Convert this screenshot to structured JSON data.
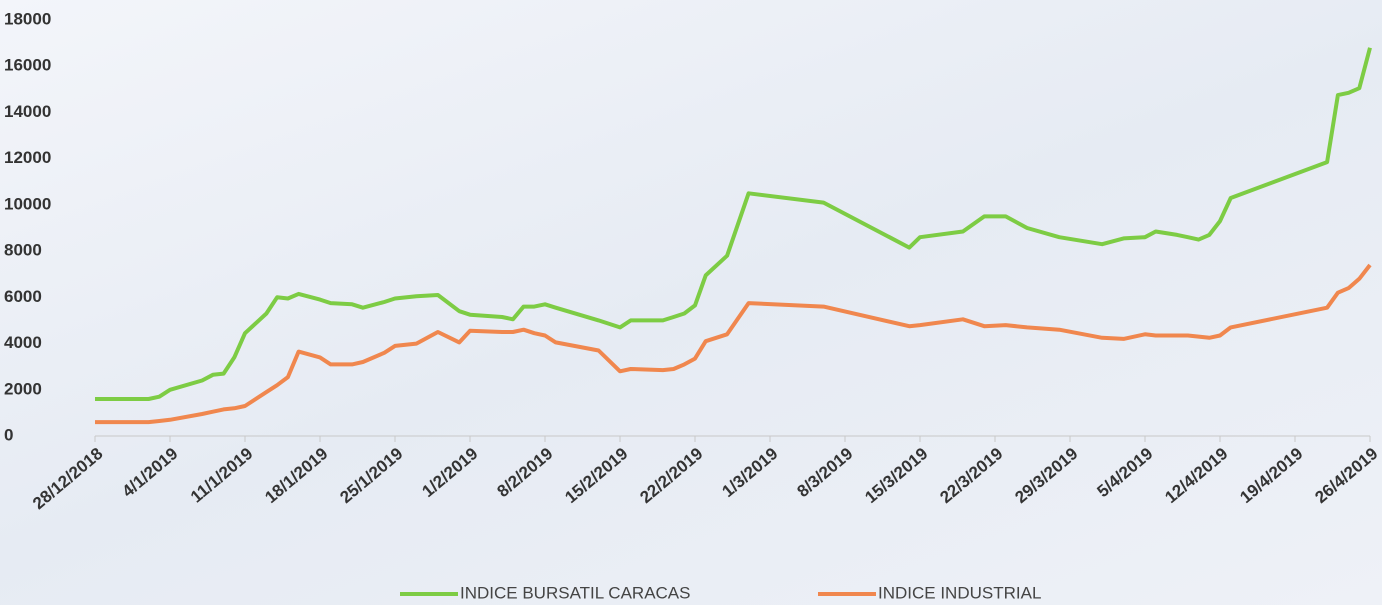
{
  "chart_data": {
    "type": "line",
    "x": [
      "28/12/2018",
      "2/1/2019",
      "3/1/2019",
      "4/1/2019",
      "7/1/2019",
      "8/1/2019",
      "9/1/2019",
      "10/1/2019",
      "11/1/2019",
      "13/1/2019",
      "14/1/2019",
      "15/1/2019",
      "16/1/2019",
      "18/1/2019",
      "19/1/2019",
      "21/1/2019",
      "22/1/2019",
      "24/1/2019",
      "25/1/2019",
      "27/1/2019",
      "29/1/2019",
      "31/1/2019",
      "1/2/2019",
      "4/2/2019",
      "5/2/2019",
      "6/2/2019",
      "7/2/2019",
      "8/2/2019",
      "9/2/2019",
      "13/2/2019",
      "15/2/2019",
      "16/2/2019",
      "19/2/2019",
      "20/2/2019",
      "21/2/2019",
      "22/2/2019",
      "23/2/2019",
      "25/2/2019",
      "27/2/2019",
      "6/3/2019",
      "14/3/2019",
      "15/3/2019",
      "19/3/2019",
      "21/3/2019",
      "23/3/2019",
      "25/3/2019",
      "28/3/2019",
      "1/4/2019",
      "3/4/2019",
      "5/4/2019",
      "6/4/2019",
      "8/4/2019",
      "9/4/2019",
      "10/4/2019",
      "11/4/2019",
      "12/4/2019",
      "13/4/2019",
      "22/4/2019",
      "23/4/2019",
      "24/4/2019",
      "25/4/2019",
      "26/4/2019"
    ],
    "series": [
      {
        "name": "INDICE BURSATIL CARACAS",
        "color": "#7dcc44",
        "values": [
          1600,
          1600,
          1700,
          2000,
          2400,
          2650,
          2700,
          3400,
          4450,
          5300,
          6000,
          5950,
          6150,
          5900,
          5750,
          5700,
          5550,
          5800,
          5950,
          6050,
          6100,
          5400,
          5250,
          5150,
          5050,
          5600,
          5600,
          5700,
          5550,
          5000,
          4700,
          5000,
          5000,
          5150,
          5300,
          5650,
          6950,
          7800,
          10500,
          10100,
          8150,
          8600,
          8850,
          9500,
          9500,
          9000,
          8600,
          8300,
          8550,
          8600,
          8850,
          8700,
          8600,
          8500,
          8700,
          9300,
          10300,
          11850,
          14750,
          14850,
          15050,
          16800
        ]
      },
      {
        "name": "INDICE INDUSTRIAL",
        "color": "#f0874e",
        "values": [
          600,
          600,
          650,
          700,
          950,
          1050,
          1150,
          1200,
          1300,
          1900,
          2200,
          2550,
          3650,
          3400,
          3100,
          3100,
          3200,
          3600,
          3900,
          4000,
          4500,
          4050,
          4550,
          4500,
          4500,
          4600,
          4450,
          4350,
          4050,
          3700,
          2800,
          2900,
          2850,
          2900,
          3100,
          3350,
          4100,
          4400,
          5750,
          5600,
          4750,
          4800,
          5050,
          4750,
          4800,
          4700,
          4600,
          4250,
          4200,
          4400,
          4350,
          4350,
          4350,
          4300,
          4250,
          4350,
          4700,
          5550,
          6200,
          6400,
          6800,
          7400
        ]
      }
    ],
    "xlim": [
      "28/12/2018",
      "26/4/2019"
    ],
    "xticks": [
      "28/12/2018",
      "4/1/2019",
      "11/1/2019",
      "18/1/2019",
      "25/1/2019",
      "1/2/2019",
      "8/2/2019",
      "15/2/2019",
      "22/2/2019",
      "1/3/2019",
      "8/3/2019",
      "15/3/2019",
      "22/3/2019",
      "29/3/2019",
      "5/4/2019",
      "12/4/2019",
      "19/4/2019",
      "26/4/2019"
    ],
    "ylim": [
      0,
      18000
    ],
    "yticks": [
      0,
      2000,
      4000,
      6000,
      8000,
      10000,
      12000,
      14000,
      16000,
      18000
    ],
    "legend": "bottom"
  }
}
